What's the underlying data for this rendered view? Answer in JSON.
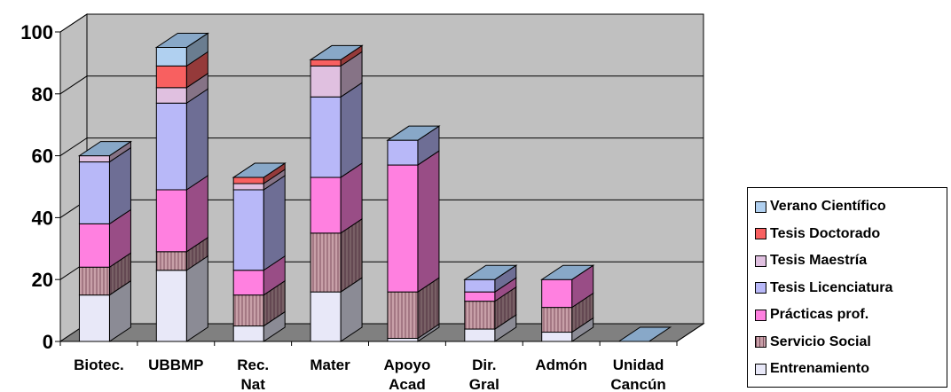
{
  "chart_data": {
    "type": "bar",
    "stacked": true,
    "three_d": true,
    "categories": [
      "Biotec.",
      "UBBMP",
      "Rec. Nat",
      "Mater",
      "Apoyo Acad",
      "Dir. Gral",
      "Admón",
      "Unidad Cancún"
    ],
    "category_lines": [
      [
        "Biotec."
      ],
      [
        "UBBMP"
      ],
      [
        "Rec.",
        "Nat"
      ],
      [
        "Mater"
      ],
      [
        "Apoyo",
        "Acad"
      ],
      [
        "Dir.",
        "Gral"
      ],
      [
        "Admón"
      ],
      [
        "Unidad",
        "Cancún"
      ]
    ],
    "ylim": [
      0,
      100
    ],
    "yticks": [
      "0",
      "20",
      "40",
      "60",
      "80",
      "100"
    ],
    "grid": true,
    "legend_position": "right",
    "series": [
      {
        "name": "Entrenamiento",
        "color": "#e8e8f8",
        "values": [
          15,
          23,
          5,
          16,
          1,
          4,
          3,
          0
        ]
      },
      {
        "name": "Servicio Social",
        "color": "#c8a0a8",
        "values": [
          9,
          6,
          10,
          19,
          15,
          9,
          8,
          0
        ]
      },
      {
        "name": "Prácticas prof.",
        "color": "#ff80e0",
        "values": [
          14,
          20,
          8,
          18,
          41,
          3,
          9,
          0
        ]
      },
      {
        "name": "Tesis Licenciatura",
        "color": "#b8b8f8",
        "values": [
          20,
          28,
          26,
          26,
          8,
          4,
          0,
          0
        ]
      },
      {
        "name": "Tesis Maestría",
        "color": "#e0c0e0",
        "values": [
          2,
          5,
          2,
          10,
          0,
          0,
          0,
          0
        ]
      },
      {
        "name": "Tesis Doctorado",
        "color": "#f86060",
        "values": [
          0,
          7,
          2,
          2,
          0,
          0,
          0,
          0
        ]
      },
      {
        "name": "Verano Científico",
        "color": "#b0d0f0",
        "values": [
          0,
          6,
          0,
          0,
          0,
          0,
          0,
          0
        ]
      }
    ],
    "colors": {
      "wall": "#c0c0c0",
      "floor": "#808080",
      "bar_side": "#7878b0",
      "bar_top": "#88a8c8"
    }
  }
}
